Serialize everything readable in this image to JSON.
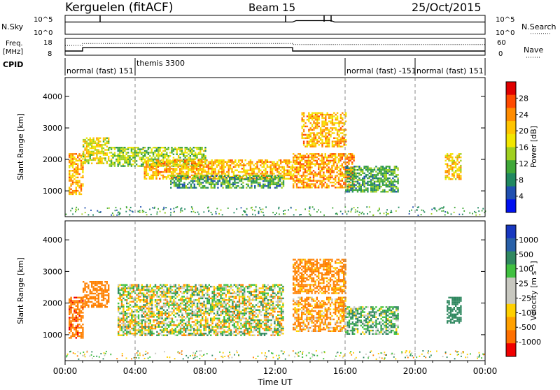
{
  "header": {
    "station": "Kerguelen (fitACF)",
    "beam": "Beam 15",
    "date": "25/Oct/2015"
  },
  "noise_panel": {
    "left_label": "N.Sky",
    "right_label": "N.Search",
    "left_ticks": [
      "10^5",
      "10^0"
    ],
    "right_ticks": [
      "10^5",
      "10^0"
    ]
  },
  "freq_panel": {
    "left_label_1": "Freq.",
    "left_label_2": "[MHz]",
    "right_label": "Nave",
    "left_ticks": [
      "18",
      "8"
    ],
    "right_ticks": [
      "60",
      "0"
    ]
  },
  "cpid": {
    "label": "CPID",
    "segments": [
      {
        "start_h": 0.0,
        "end_h": 4.0,
        "text": "normal (fast) 151"
      },
      {
        "start_h": 4.0,
        "end_h": 16.0,
        "text": "themis 3300"
      },
      {
        "start_h": 16.0,
        "end_h": 20.0,
        "text": "normal (fast) -151"
      },
      {
        "start_h": 20.0,
        "end_h": 24.0,
        "text": "normal (fast) 151"
      }
    ]
  },
  "power_panel": {
    "ylabel": "Slant Range [km]",
    "cbar_label": "Power [dB]",
    "cbar_ticks": [
      "28",
      "24",
      "20",
      "16",
      "12",
      "8",
      "4"
    ],
    "cbar_colors": [
      "#e00000",
      "#ff4a00",
      "#ff8c00",
      "#ffc400",
      "#f2e600",
      "#a0d020",
      "#40a838",
      "#208860",
      "#2050b0",
      "#0010f0"
    ]
  },
  "velocity_panel": {
    "ylabel": "Slant Range [km]",
    "cbar_label": "Velocity [m s⁻¹]",
    "cbar_ticks": [
      "1000",
      "500",
      "100",
      "25",
      "-25",
      "-100",
      "-500",
      "-1000"
    ],
    "cbar_colors": [
      "#1838c0",
      "#2860a8",
      "#308860",
      "#40c040",
      "#c8c8c0",
      "#c8c8c0",
      "#ffd000",
      "#ffa000",
      "#ff7000",
      "#f00000"
    ]
  },
  "x_axis": {
    "label": "Time UT",
    "ticks": [
      "00:00",
      "04:00",
      "08:00",
      "12:00",
      "16:00",
      "20:00",
      "00:00"
    ]
  },
  "chart_data": {
    "type": "heatmap",
    "title": "Kerguelen (fitACF) Beam 15 25/Oct/2015",
    "xlabel": "Time UT",
    "xlim_hours": [
      0,
      24
    ],
    "panels": [
      {
        "name": "noise",
        "series": [
          {
            "name": "N.Sky",
            "description_level": "near 10^4 for most of day, rises briefly near 13:00-15:00"
          }
        ]
      },
      {
        "name": "frequency",
        "series": [
          {
            "name": "Freq.",
            "x_hours": [
              0,
              1,
              1,
              13,
              13,
              24
            ],
            "y_mhz": [
              10.5,
              10.5,
              12.5,
              12.5,
              10.5,
              10.5
            ]
          },
          {
            "name": "Nave",
            "x_hours": [
              0,
              1,
              1,
              13,
              13,
              24
            ],
            "y": [
              35,
              35,
              42,
              42,
              38,
              38
            ]
          }
        ]
      },
      {
        "name": "power",
        "ylabel": "Slant Range [km]",
        "ylim": [
          180,
          4600
        ],
        "yticks": [
          1000,
          2000,
          3000,
          4000
        ],
        "cbar": {
          "label": "Power [dB]",
          "range": [
            0,
            32
          ],
          "ticks": [
            4,
            8,
            12,
            16,
            20,
            24,
            28
          ]
        },
        "echo_regions": [
          {
            "t_start": 0.2,
            "t_end": 1.0,
            "r_start": 900,
            "r_end": 2200,
            "level_db": 22
          },
          {
            "t_start": 1.0,
            "t_end": 2.5,
            "r_start": 1900,
            "r_end": 2700,
            "level_db": 18
          },
          {
            "t_start": 2.5,
            "t_end": 8.0,
            "r_start": 1800,
            "r_end": 2400,
            "level_db": 14
          },
          {
            "t_start": 4.5,
            "t_end": 13.0,
            "r_start": 1400,
            "r_end": 2000,
            "level_db": 22
          },
          {
            "t_start": 6.0,
            "t_end": 12.5,
            "r_start": 1100,
            "r_end": 1500,
            "level_db": 10
          },
          {
            "t_start": 13.0,
            "t_end": 16.5,
            "r_start": 1100,
            "r_end": 2200,
            "level_db": 24
          },
          {
            "t_start": 13.5,
            "t_end": 16.0,
            "r_start": 2400,
            "r_end": 3500,
            "level_db": 22
          },
          {
            "t_start": 16.0,
            "t_end": 19.0,
            "r_start": 1000,
            "r_end": 1800,
            "level_db": 10
          },
          {
            "t_start": 21.7,
            "t_end": 22.6,
            "r_start": 1400,
            "r_end": 2200,
            "level_db": 20
          }
        ]
      },
      {
        "name": "velocity",
        "ylabel": "Slant Range [km]",
        "ylim": [
          180,
          4600
        ],
        "yticks": [
          1000,
          2000,
          3000,
          4000
        ],
        "cbar": {
          "label": "Velocity [m s⁻¹]",
          "range": [
            -1000,
            1000
          ],
          "ticks": [
            -1000,
            -500,
            -100,
            -25,
            25,
            100,
            500,
            1000
          ]
        },
        "echo_regions": [
          {
            "t_start": 0.2,
            "t_end": 1.0,
            "r_start": 900,
            "r_end": 2200,
            "velocity": -400
          },
          {
            "t_start": 1.0,
            "t_end": 2.5,
            "r_start": 1900,
            "r_end": 2700,
            "velocity": -300
          },
          {
            "t_start": 3.0,
            "t_end": 12.5,
            "r_start": 1000,
            "r_end": 2600,
            "velocity": 0
          },
          {
            "t_start": 13.0,
            "t_end": 16.0,
            "r_start": 2300,
            "r_end": 3400,
            "velocity": -200
          },
          {
            "t_start": 13.0,
            "t_end": 16.0,
            "r_start": 1100,
            "r_end": 2200,
            "velocity": -150
          },
          {
            "t_start": 16.0,
            "t_end": 19.0,
            "r_start": 1000,
            "r_end": 1900,
            "velocity": 100
          },
          {
            "t_start": 21.8,
            "t_end": 22.6,
            "r_start": 1400,
            "r_end": 2200,
            "velocity": 300
          }
        ]
      }
    ]
  }
}
